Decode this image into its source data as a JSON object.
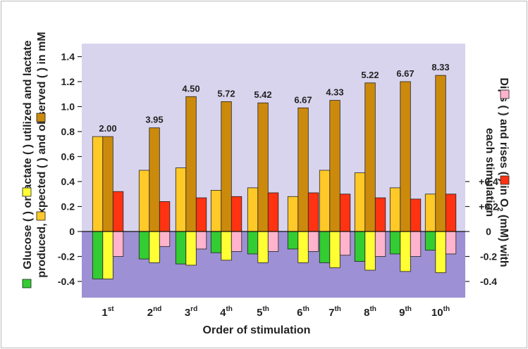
{
  "chart_data": {
    "type": "bar",
    "xlabel": "Order of stimulation",
    "ylabel_line1": "Glucose (  ) or lactate (  ) utilized and lactate",
    "ylabel_line2": "produced, expected (  ) and observed (  ) in mM",
    "y2label_line1": "Dips (  ) and rises (  ) in O",
    "y2label_sub": "2",
    "y2label_tail": " (mM) with",
    "y2label_line2": "each stimulation",
    "categories": [
      {
        "num": "1",
        "suffix": "st"
      },
      {
        "num": "2",
        "suffix": "nd"
      },
      {
        "num": "3",
        "suffix": "rd"
      },
      {
        "num": "4",
        "suffix": "th"
      },
      {
        "num": "5",
        "suffix": "th"
      },
      {
        "num": "6",
        "suffix": "th"
      },
      {
        "num": "7",
        "suffix": "th"
      },
      {
        "num": "8",
        "suffix": "th"
      },
      {
        "num": "9",
        "suffix": "th"
      },
      {
        "num": "10",
        "suffix": "th"
      }
    ],
    "ylim": [
      -0.52,
      1.48
    ],
    "yticks": [
      "1.4",
      "1.2",
      "1.0",
      "0.8",
      "0.6",
      "0.4",
      "0.2",
      "0",
      "-0.2",
      "-0.4"
    ],
    "yticks_values": [
      1.4,
      1.2,
      1.0,
      0.8,
      0.6,
      0.4,
      0.2,
      0,
      -0.2,
      -0.4
    ],
    "y2ticks": [
      "+0.4",
      "+0.2",
      "0",
      "-0.2",
      "-0.4"
    ],
    "y2ticks_values": [
      0.4,
      0.2,
      0,
      -0.2,
      -0.4
    ],
    "series": [
      {
        "key": "glucose_utilized",
        "color": "#33cc33",
        "values": [
          -0.38,
          -0.22,
          -0.26,
          -0.17,
          -0.18,
          -0.14,
          -0.25,
          -0.24,
          -0.18,
          -0.15
        ]
      },
      {
        "key": "lactate_utilized",
        "color": "#ffff33",
        "values": [
          -0.38,
          -0.25,
          -0.27,
          -0.23,
          -0.25,
          -0.25,
          -0.29,
          -0.31,
          -0.32,
          -0.33
        ]
      },
      {
        "key": "oxygen_dips",
        "color": "#ffb3cc",
        "values": [
          -0.2,
          -0.12,
          -0.14,
          -0.16,
          -0.16,
          -0.16,
          -0.19,
          -0.2,
          -0.2,
          -0.18
        ]
      },
      {
        "key": "lactate_expected",
        "color": "#ffc928",
        "values": [
          0.76,
          0.49,
          0.51,
          0.33,
          0.35,
          0.28,
          0.49,
          0.47,
          0.35,
          0.3
        ]
      },
      {
        "key": "lactate_observed",
        "color": "#cc8a0c",
        "values": [
          0.76,
          0.83,
          1.08,
          1.04,
          1.03,
          0.99,
          1.05,
          1.19,
          1.2,
          1.25
        ]
      },
      {
        "key": "oxygen_rises",
        "color": "#ff3311",
        "values": [
          0.32,
          0.24,
          0.27,
          0.28,
          0.31,
          0.31,
          0.3,
          0.27,
          0.26,
          0.3
        ]
      }
    ],
    "observed_labels": [
      "2.00",
      "3.95",
      "4.50",
      "5.72",
      "5.42",
      "6.67",
      "4.33",
      "5.22",
      "6.67",
      "8.33"
    ],
    "colors": {
      "upper_bg": "#d8d4ee",
      "lower_bg": "#9d90d4",
      "zero_line": "#111111"
    },
    "grid": false
  }
}
